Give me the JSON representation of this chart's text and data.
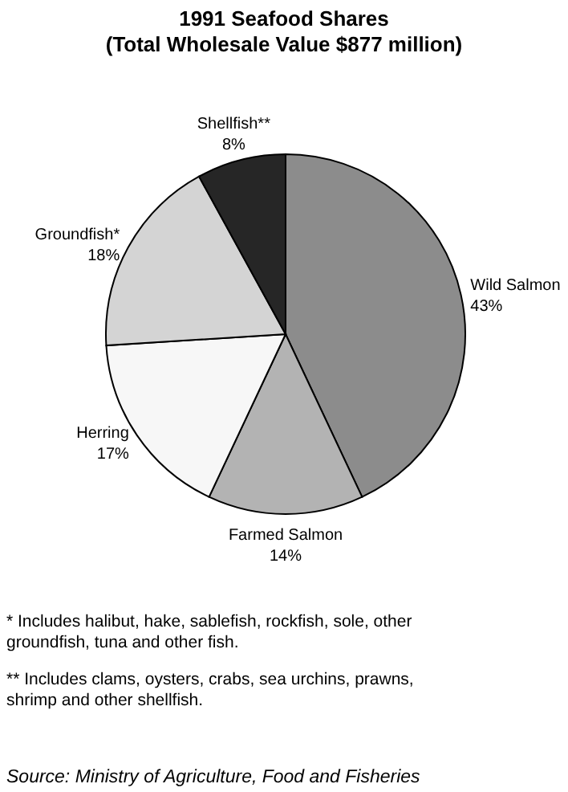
{
  "chart_data": {
    "type": "pie",
    "title": "1991 Seafood Shares",
    "subtitle": "(Total Wholesale Value $877 million)",
    "categories": [
      "Wild Salmon",
      "Farmed Salmon",
      "Herring",
      "Groundfish*",
      "Shellfish**"
    ],
    "values": [
      43,
      14,
      17,
      18,
      8
    ],
    "colors": [
      "#8c8c8c",
      "#b3b3b3",
      "#f7f7f7",
      "#d4d4d4",
      "#262626"
    ],
    "value_labels": [
      "43%",
      "14%",
      "17%",
      "18%",
      "8%"
    ],
    "legend": false,
    "annotations": [
      "* Includes halibut, hake, sablefish,  rockfish, sole, other groundfish, tuna and other fish.",
      "** Includes clams, oysters, crabs, sea urchins, prawns, shrimp and other shellfish.",
      "Source: Ministry of Agriculture, Food and Fisheries"
    ]
  }
}
